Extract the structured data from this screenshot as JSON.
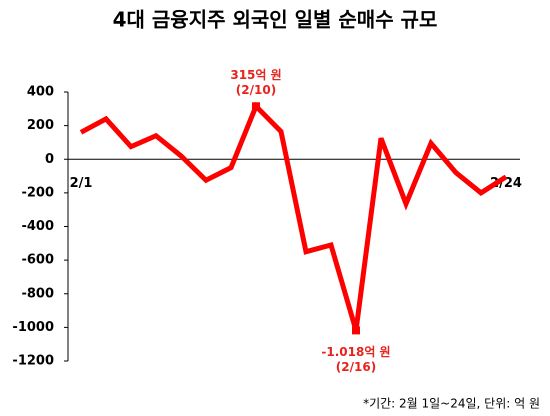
{
  "chart_data": {
    "type": "line",
    "title": "4대 금융지주 외국인 일별 순매수 규모",
    "categories": [
      "2/1",
      null,
      null,
      null,
      null,
      null,
      null,
      null,
      null,
      null,
      null,
      null,
      null,
      null,
      null,
      null,
      null,
      "2/24"
    ],
    "values": [
      160,
      240,
      75,
      140,
      20,
      -125,
      -50,
      315,
      165,
      -550,
      -510,
      -1018,
      125,
      -265,
      95,
      -80,
      -200,
      -105
    ],
    "value_labels": [
      null,
      null,
      null,
      null,
      null,
      null,
      null,
      "315억 원",
      null,
      null,
      null,
      "-1.018억 원",
      null,
      null,
      null,
      null,
      null,
      null
    ],
    "annotations": [
      null,
      null,
      null,
      null,
      null,
      null,
      null,
      "(2/10)",
      null,
      null,
      null,
      "(2/16)",
      null,
      null,
      null,
      null,
      null,
      null
    ],
    "color": "#ff0000",
    "label_color": "#e8231c",
    "ylim": [
      -1200,
      400
    ],
    "yticks": [
      400,
      200,
      0,
      -200,
      -400,
      -600,
      -800,
      -1000,
      -1200
    ],
    "footnote": "*기간: 2월 1일~24일, 단위: 억 원"
  }
}
